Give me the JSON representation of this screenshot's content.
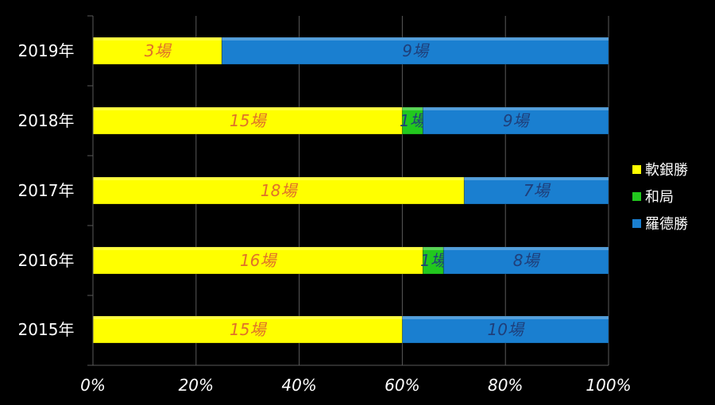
{
  "chart_data": {
    "type": "bar",
    "orientation": "horizontal",
    "stacked": "percent",
    "categories": [
      "2019年",
      "2018年",
      "2017年",
      "2016年",
      "2015年"
    ],
    "series": [
      {
        "name": "軟銀勝",
        "color": "#ffff00",
        "label_color": "#e0702a",
        "values": [
          3,
          15,
          18,
          16,
          15
        ],
        "labels": [
          "3場",
          "15場",
          "18場",
          "16場",
          "15場"
        ]
      },
      {
        "name": "和局",
        "color": "#22c81e",
        "label_color": "#1f3f7a",
        "values": [
          0,
          1,
          0,
          1,
          0
        ],
        "labels": [
          "",
          "1場",
          "",
          "1場",
          ""
        ]
      },
      {
        "name": "羅德勝",
        "color": "#1a7fd0",
        "label_color": "#1f3f7a",
        "values": [
          9,
          9,
          7,
          8,
          10
        ],
        "labels": [
          "9場",
          "9場",
          "7場",
          "8場",
          "10場"
        ]
      }
    ],
    "x_ticks": [
      "0%",
      "20%",
      "40%",
      "60%",
      "80%",
      "100%"
    ],
    "xlim": [
      0,
      100
    ],
    "grid": true,
    "legend_position": "right",
    "title": "",
    "xlabel": "",
    "ylabel": ""
  },
  "colors": {
    "background": "#000000",
    "gridline": "#5a5a5a",
    "text": "#ffffff"
  }
}
